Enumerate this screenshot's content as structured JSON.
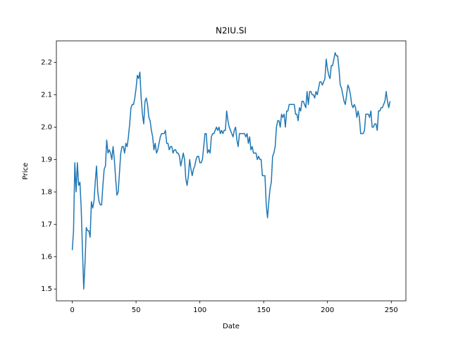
{
  "chart_data": {
    "type": "line",
    "title": "N2IU.SI",
    "x_label": "Date",
    "y_label": "Price",
    "color": "#1f77b4",
    "values": [
      1.62,
      1.68,
      1.89,
      1.8,
      1.89,
      1.82,
      1.83,
      1.75,
      1.62,
      1.5,
      1.58,
      1.69,
      1.68,
      1.68,
      1.66,
      1.77,
      1.75,
      1.77,
      1.83,
      1.88,
      1.8,
      1.77,
      1.76,
      1.76,
      1.82,
      1.87,
      1.88,
      1.96,
      1.92,
      1.93,
      1.92,
      1.9,
      1.94,
      1.9,
      1.84,
      1.79,
      1.8,
      1.86,
      1.92,
      1.94,
      1.94,
      1.92,
      1.95,
      1.94,
      1.97,
      2.01,
      2.06,
      2.07,
      2.07,
      2.09,
      2.12,
      2.16,
      2.15,
      2.17,
      2.09,
      2.04,
      2.01,
      2.08,
      2.09,
      2.07,
      2.03,
      2.02,
      1.99,
      1.97,
      1.93,
      1.95,
      1.92,
      1.93,
      1.95,
      1.97,
      1.98,
      1.98,
      1.98,
      1.99,
      1.95,
      1.95,
      1.93,
      1.94,
      1.94,
      1.92,
      1.93,
      1.93,
      1.92,
      1.92,
      1.91,
      1.88,
      1.9,
      1.92,
      1.9,
      1.84,
      1.82,
      1.85,
      1.9,
      1.87,
      1.85,
      1.87,
      1.88,
      1.9,
      1.91,
      1.91,
      1.89,
      1.89,
      1.9,
      1.94,
      1.98,
      1.98,
      1.92,
      1.93,
      1.92,
      1.97,
      1.98,
      1.98,
      1.99,
      2.0,
      1.99,
      2.0,
      1.98,
      1.99,
      1.98,
      1.99,
      1.99,
      2.05,
      2.02,
      2.0,
      1.99,
      1.98,
      1.97,
      1.99,
      2.0,
      1.96,
      1.94,
      1.98,
      1.98,
      1.98,
      1.98,
      1.98,
      1.97,
      1.98,
      1.95,
      1.97,
      1.93,
      1.94,
      1.92,
      1.92,
      1.92,
      1.9,
      1.91,
      1.9,
      1.9,
      1.85,
      1.85,
      1.85,
      1.76,
      1.72,
      1.77,
      1.81,
      1.83,
      1.91,
      1.92,
      1.94,
      2.0,
      2.02,
      2.02,
      2.0,
      2.04,
      2.03,
      2.04,
      2.0,
      2.05,
      2.05,
      2.07,
      2.07,
      2.07,
      2.07,
      2.07,
      2.04,
      2.04,
      2.02,
      2.06,
      2.05,
      2.08,
      2.08,
      2.07,
      2.06,
      2.11,
      2.07,
      2.11,
      2.11,
      2.1,
      2.1,
      2.09,
      2.11,
      2.1,
      2.12,
      2.14,
      2.14,
      2.13,
      2.14,
      2.15,
      2.21,
      2.18,
      2.16,
      2.15,
      2.19,
      2.19,
      2.21,
      2.23,
      2.22,
      2.22,
      2.18,
      2.13,
      2.12,
      2.1,
      2.08,
      2.07,
      2.1,
      2.13,
      2.12,
      2.1,
      2.07,
      2.06,
      2.07,
      2.06,
      2.03,
      2.05,
      2.03,
      1.98,
      1.98,
      1.98,
      1.99,
      2.04,
      2.04,
      2.04,
      2.03,
      2.05,
      2.0,
      2.0,
      2.01,
      2.01,
      1.99,
      2.05,
      2.05,
      2.06,
      2.06,
      2.07,
      2.08,
      2.11,
      2.08,
      2.06,
      2.08
    ],
    "xlim": [
      -12.45,
      261.45
    ],
    "xticks": [
      0,
      50,
      100,
      150,
      200,
      250
    ],
    "ylim": [
      1.4635,
      2.2665
    ],
    "yticks": [
      1.5,
      1.6,
      1.7,
      1.8,
      1.9,
      {
        "value": 2,
        "label": "2.0"
      },
      2.1,
      2.2
    ]
  }
}
